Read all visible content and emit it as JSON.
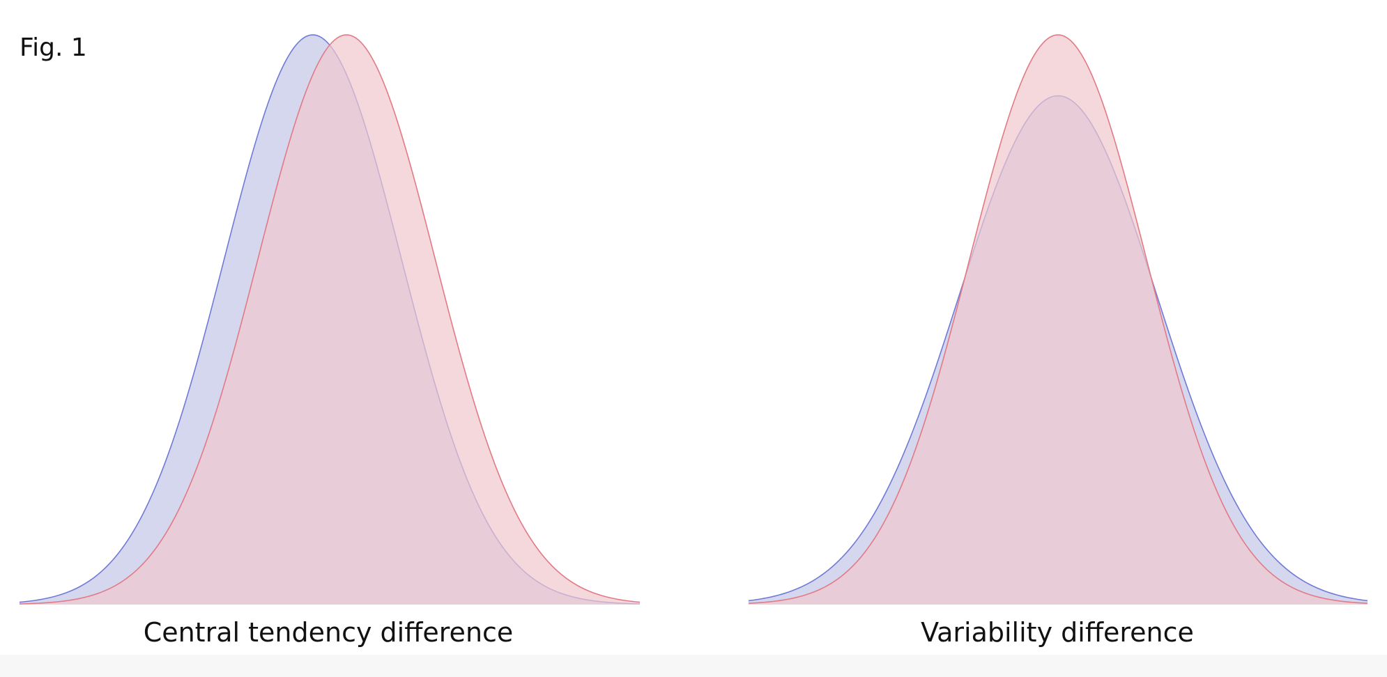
{
  "figure_label": "Fig. 1",
  "colors": {
    "blue_fill": "#d5d7ee",
    "blue_line": "#6f7ad6",
    "red_fill": "#f0c8cd",
    "red_line": "#e27a86",
    "red_fill_opacity": 0.7
  },
  "chart_data": [
    {
      "type": "area",
      "title": "Central tendency difference",
      "xlabel": "",
      "ylabel": "",
      "xlim": [
        -3.5,
        3.5
      ],
      "grid": false,
      "series": [
        {
          "color_key": "blue",
          "distribution": "normal",
          "mean": -0.19,
          "sd": 1.0,
          "peak": 1.0
        },
        {
          "color_key": "red",
          "distribution": "normal",
          "mean": 0.19,
          "sd": 1.0,
          "peak": 1.0
        }
      ]
    },
    {
      "type": "area",
      "title": "Variability difference",
      "xlabel": "",
      "ylabel": "",
      "xlim": [
        -3.5,
        3.5
      ],
      "grid": false,
      "series": [
        {
          "color_key": "blue",
          "distribution": "normal",
          "mean": 0.0,
          "sd": 1.12,
          "peak": 0.893
        },
        {
          "color_key": "red",
          "distribution": "normal",
          "mean": 0.0,
          "sd": 1.0,
          "peak": 1.0
        }
      ]
    }
  ]
}
